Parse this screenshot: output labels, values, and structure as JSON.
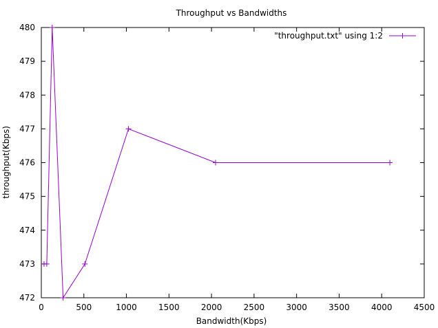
{
  "chart_data": {
    "type": "line",
    "title": "Throughput vs Bandwidths",
    "xlabel": "Bandwidth(Kbps)",
    "ylabel": "throughput(Kbps)",
    "xlim": [
      0,
      4500
    ],
    "ylim": [
      472,
      480
    ],
    "xticks": [
      0,
      500,
      1000,
      1500,
      2000,
      2500,
      3000,
      3500,
      4000,
      4500
    ],
    "yticks": [
      472,
      473,
      474,
      475,
      476,
      477,
      478,
      479,
      480
    ],
    "grid": false,
    "legend_position": "top-right",
    "series": [
      {
        "name": "\"throughput.txt\" using 1:2",
        "color": "#9400d3",
        "marker": "plus",
        "x": [
          32,
          64,
          128,
          256,
          512,
          1024,
          2048,
          4096
        ],
        "y": [
          473,
          473,
          480,
          472,
          473,
          477,
          476,
          476
        ]
      }
    ]
  }
}
